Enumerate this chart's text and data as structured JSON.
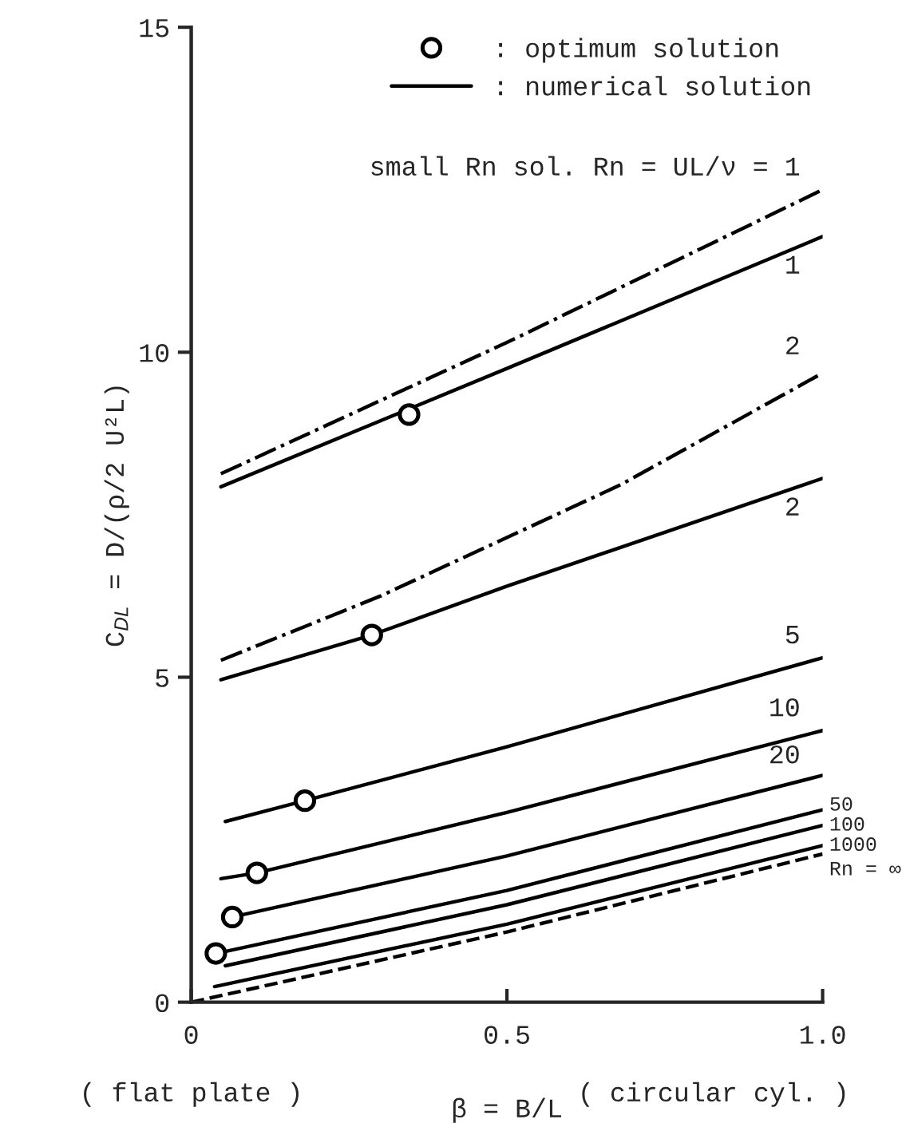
{
  "chart_data": {
    "type": "line",
    "xlabel": "β = B/L",
    "ylabel": "C$_{DL}$ = D/(ρ/2 U²L)",
    "xlim": [
      0,
      1.0
    ],
    "ylim": [
      0,
      15
    ],
    "xticks": [
      0,
      0.5,
      {
        "value": 1.0,
        "label": "1.0"
      }
    ],
    "yticks": [
      0,
      5,
      10,
      15
    ],
    "grid": false,
    "legend": "top right",
    "annotations": [
      ": numerical solution",
      "( flat plate )",
      "( circular cyl. )"
    ],
    "series": [
      {
        "name": "small Rn sol. Rn = UL/ν = 1",
        "color": "#000000",
        "line_style": "dashdot",
        "x": [
          0.047,
          0.5,
          1.0
        ],
        "values": [
          8.13,
          10.15,
          12.5
        ]
      },
      {
        "name": "1",
        "color": "#000000",
        "line_style": "solid",
        "x": [
          0.047,
          0.5,
          1.0
        ],
        "values": [
          7.93,
          9.75,
          11.78
        ]
      },
      {
        "name": "2",
        "color": "#000000",
        "line_style": "dashdot",
        "x": [
          0.047,
          0.3,
          0.68,
          1.0
        ],
        "values": [
          5.26,
          6.25,
          7.96,
          9.68
        ]
      },
      {
        "name": "2",
        "color": "#000000",
        "line_style": "solid",
        "x": [
          0.047,
          0.286,
          0.5,
          1.0
        ],
        "values": [
          4.96,
          5.65,
          6.4,
          8.06
        ]
      },
      {
        "name": "5",
        "color": "#000000",
        "line_style": "solid",
        "x": [
          0.054,
          0.18,
          0.5,
          1.0
        ],
        "values": [
          2.78,
          3.1,
          3.93,
          5.3
        ]
      },
      {
        "name": "10",
        "color": "#000000",
        "line_style": "solid",
        "x": [
          0.047,
          0.104,
          0.5,
          1.0
        ],
        "values": [
          1.9,
          1.99,
          2.92,
          4.18
        ]
      },
      {
        "name": "20",
        "color": "#000000",
        "line_style": "solid",
        "x": [
          0.065,
          0.5,
          1.0
        ],
        "values": [
          1.31,
          2.25,
          3.49
        ]
      },
      {
        "name": "50",
        "color": "#000000",
        "line_style": "solid",
        "x": [
          0.039,
          0.5,
          1.0
        ],
        "values": [
          0.75,
          1.72,
          2.96
        ]
      },
      {
        "name": "100",
        "color": "#000000",
        "line_style": "solid",
        "x": [
          0.054,
          0.5,
          1.0
        ],
        "values": [
          0.56,
          1.5,
          2.72
        ]
      },
      {
        "name": "1000",
        "color": "#000000",
        "line_style": "solid",
        "x": [
          0.037,
          0.5,
          1.0
        ],
        "values": [
          0.24,
          1.2,
          2.41
        ]
      },
      {
        "name": "Rn = ∞",
        "color": "#000000",
        "line_style": "dashed",
        "x": [
          0,
          0.5,
          1.0
        ],
        "values": [
          0,
          1.08,
          2.28
        ]
      },
      {
        "name": ": optimum solution",
        "type": "scatter",
        "marker": "circle",
        "color": "#000000",
        "x": [
          0.345,
          0.286,
          0.18,
          0.104,
          0.065,
          0.039
        ],
        "values": [
          9.04,
          5.65,
          3.1,
          1.99,
          1.31,
          0.75
        ]
      }
    ]
  }
}
